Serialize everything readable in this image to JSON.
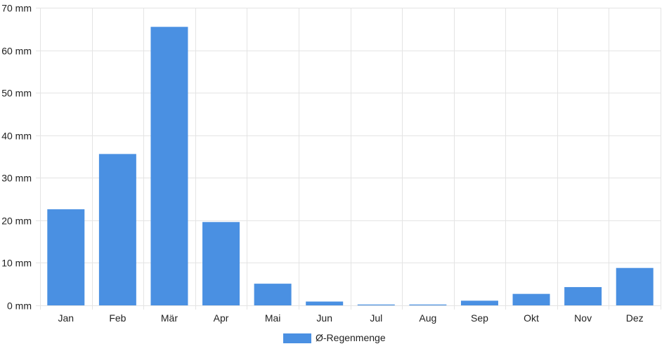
{
  "chart_data": {
    "type": "bar",
    "categories": [
      "Jan",
      "Feb",
      "Mär",
      "Apr",
      "Mai",
      "Jun",
      "Jul",
      "Aug",
      "Sep",
      "Okt",
      "Nov",
      "Dez"
    ],
    "series": [
      {
        "name": "Ø-Regenmenge",
        "values": [
          22.6,
          35.6,
          65.5,
          19.6,
          5.1,
          0.9,
          0.2,
          0.2,
          1.1,
          2.7,
          4.3,
          8.8
        ]
      }
    ],
    "ylim": [
      0,
      70
    ],
    "yticks": [
      0,
      10,
      20,
      30,
      40,
      50,
      60,
      70
    ],
    "y_unit": "mm",
    "grid": true,
    "legend_position": "bottom",
    "colors": {
      "bar": "#4a90e2",
      "grid": "#e4e4e4",
      "axis_text": "#222222"
    }
  }
}
